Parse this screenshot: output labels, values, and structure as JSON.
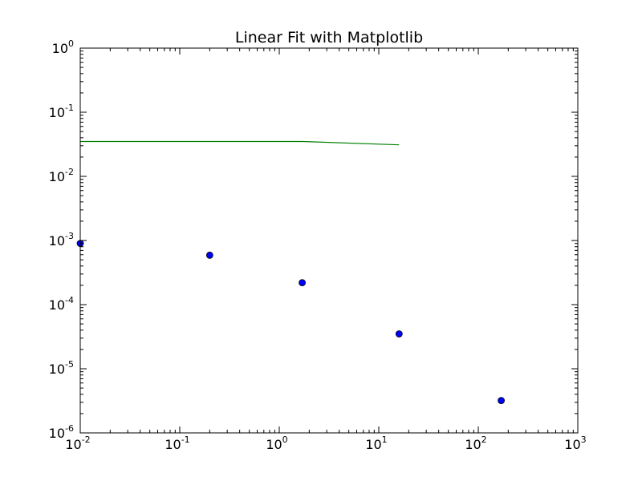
{
  "chart_data": {
    "type": "scatter",
    "title": "Linear Fit with Matplotlib",
    "xlabel": "",
    "ylabel": "",
    "xscale": "log",
    "yscale": "log",
    "xlim": [
      0.01,
      1000
    ],
    "ylim": [
      1e-06,
      1
    ],
    "grid": false,
    "legend": "none",
    "x_ticks": [
      {
        "value": 0.01,
        "base": "10",
        "exp": "-2"
      },
      {
        "value": 0.1,
        "base": "10",
        "exp": "-1"
      },
      {
        "value": 1,
        "base": "10",
        "exp": "0"
      },
      {
        "value": 10,
        "base": "10",
        "exp": "1"
      },
      {
        "value": 100,
        "base": "10",
        "exp": "2"
      },
      {
        "value": 1000,
        "base": "10",
        "exp": "3"
      }
    ],
    "y_ticks": [
      {
        "value": 1,
        "base": "10",
        "exp": "0"
      },
      {
        "value": 0.1,
        "base": "10",
        "exp": "-1"
      },
      {
        "value": 0.01,
        "base": "10",
        "exp": "-2"
      },
      {
        "value": 0.001,
        "base": "10",
        "exp": "-3"
      },
      {
        "value": 0.0001,
        "base": "10",
        "exp": "-4"
      },
      {
        "value": 1e-05,
        "base": "10",
        "exp": "-5"
      },
      {
        "value": 1e-06,
        "base": "10",
        "exp": "-6"
      }
    ],
    "series": [
      {
        "kind": "points",
        "color": "#0000ff",
        "x": [
          0.01,
          0.2,
          1.7,
          16,
          170
        ],
        "y": [
          0.0009,
          0.00059,
          0.00022,
          3.5e-05,
          3.2e-06
        ]
      },
      {
        "kind": "line",
        "color": "#008000",
        "x": [
          0.01,
          0.3,
          1.7,
          16
        ],
        "y": [
          0.035,
          0.035,
          0.035,
          0.031
        ]
      }
    ]
  }
}
